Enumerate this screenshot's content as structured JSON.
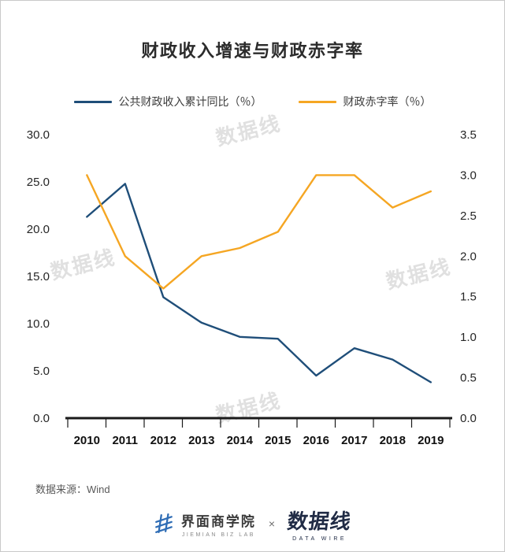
{
  "title": "财政收入增速与财政赤字率",
  "legend": [
    {
      "label": "公共财政收入累计同比（％）",
      "color": "#1F4E79"
    },
    {
      "label": "财政赤字率（％）",
      "color": "#F5A623"
    }
  ],
  "watermark_text": "数据线",
  "source": "数据来源：Wind",
  "footer": {
    "jiemian_name": "界面商学院",
    "jiemian_sub": "JIEMIAN BIZ LAB",
    "separator": "×",
    "datawire_name": "数据线",
    "datawire_sub": "DATA WIRE"
  },
  "chart_data": {
    "type": "line",
    "title": "财政收入增速与财政赤字率",
    "categories": [
      "2010",
      "2011",
      "2012",
      "2013",
      "2014",
      "2015",
      "2016",
      "2017",
      "2018",
      "2019"
    ],
    "series": [
      {
        "name": "公共财政收入累计同比（％）",
        "axis": "left",
        "color": "#1F4E79",
        "values": [
          21.3,
          24.8,
          12.8,
          10.1,
          8.6,
          8.4,
          4.5,
          7.4,
          6.2,
          3.8
        ]
      },
      {
        "name": "财政赤字率（％）",
        "axis": "right",
        "color": "#F5A623",
        "values": [
          3.0,
          2.0,
          1.6,
          2.0,
          2.1,
          2.3,
          3.0,
          3.0,
          2.6,
          2.8
        ]
      }
    ],
    "left_axis": {
      "min": 0,
      "max": 30,
      "step": 5,
      "ticks": [
        "0.0",
        "5.0",
        "10.0",
        "15.0",
        "20.0",
        "25.0",
        "30.0"
      ]
    },
    "right_axis": {
      "min": 0,
      "max": 3.5,
      "step": 0.5,
      "ticks": [
        "0.0",
        "0.5",
        "1.0",
        "1.5",
        "2.0",
        "2.5",
        "3.0",
        "3.5"
      ]
    },
    "legend_position": "top",
    "grid": false
  }
}
